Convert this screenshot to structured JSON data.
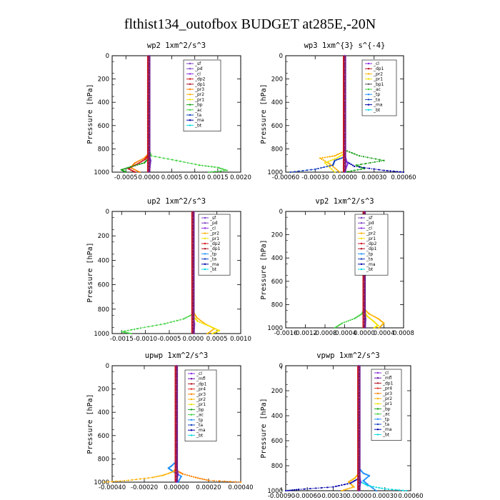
{
  "figure": {
    "title": "flthist134_outofbox  BUDGET at285E,-20N"
  },
  "colors": {
    "_sf": "#7b3fc4",
    "_pd": "#7b3fc4",
    "_cl": "#8a2be2",
    "_dp2": "#d0151d",
    "_dp1": "#b01020",
    "_pr4": "#e0301e",
    "_pr3": "#ff8000",
    "_pr2": "#ffb000",
    "_pr1": "#f2e200",
    "_bp": "#15a015",
    "_ac": "#40d040",
    "_tp": "#1e90ff",
    "_ta": "#1040c0",
    "_ma": "#0000aa",
    "_bt": "#00d8e0",
    "_mfl": "#6a0dad"
  },
  "chart_data": [
    {
      "type": "line",
      "title": "wp2   1xm^2/s^3",
      "ylabel": "Pressure [hPa]",
      "ylim": [
        1000,
        0
      ],
      "xlim": [
        -0.0008,
        0.002
      ],
      "xticks": [
        -0.0005,
        0.0,
        0.0005,
        0.001,
        0.0015,
        0.002
      ],
      "xticklabels": [
        "-0.0005",
        "0.0000",
        "0.0005",
        "0.0010",
        "0.0015",
        "0.0020"
      ],
      "yticks": [
        0,
        200,
        400,
        600,
        800,
        1000
      ],
      "legend": [
        "_sf",
        "_pd",
        "_cl",
        "_dp2",
        "_dp1",
        "_pr3",
        "_pr2",
        "_pr1",
        "_bp",
        "_ac",
        "_ta",
        "_ma",
        "_bt"
      ],
      "legend_position": "top-right",
      "series": [
        {
          "key": "_ac",
          "x": [
            0,
            0,
            5e-05,
            0.0006,
            0.0011,
            0.0015,
            0.0017,
            0.0013
          ],
          "y": [
            0,
            800,
            860,
            900,
            940,
            960,
            985,
            1000
          ]
        },
        {
          "key": "_pr3",
          "x": [
            0,
            0,
            -0.0001,
            -0.0003,
            -0.0004,
            -0.0002
          ],
          "y": [
            0,
            840,
            880,
            920,
            960,
            1000
          ]
        },
        {
          "key": "_dp2",
          "x": [
            0,
            0,
            -8e-05,
            -0.00025,
            -0.00045,
            -0.0003
          ],
          "y": [
            0,
            850,
            890,
            930,
            970,
            1000
          ]
        },
        {
          "key": "_bp",
          "x": [
            0,
            0,
            -0.0001,
            -0.0004,
            -0.0006,
            -0.0005
          ],
          "y": [
            0,
            880,
            920,
            955,
            980,
            1000
          ]
        },
        {
          "key": "_sf",
          "x": [
            0,
            0,
            4e-05,
            2e-05,
            0
          ],
          "y": [
            0,
            840,
            900,
            960,
            1000
          ]
        }
      ]
    },
    {
      "type": "line",
      "title": "wp3   1xm^{3} s^{-4}",
      "ylabel": "Pressure [hPa]",
      "ylim": [
        1000,
        0
      ],
      "xlim": [
        -0.0006,
        0.0006
      ],
      "xticks": [
        -0.0006,
        -0.0003,
        0.0,
        0.0003,
        0.0006
      ],
      "xticklabels": [
        "-0.00060",
        "-0.00030",
        "0.00000",
        "0.00030",
        "0.00060"
      ],
      "yticks": [
        0,
        200,
        400,
        600,
        800,
        1000
      ],
      "legend": [
        "_cl",
        "_dp1",
        "_pr2",
        "_pr1",
        "_bp1",
        "_ac",
        "_tp",
        "_ta",
        "_ma",
        "_bt"
      ],
      "legend_position": "top-right",
      "series": [
        {
          "key": "_bp",
          "x": [
            0,
            0,
            0.00015,
            0.0004,
            0.00012,
            0.0002,
            0
          ],
          "y": [
            0,
            810,
            860,
            900,
            940,
            970,
            1000
          ]
        },
        {
          "key": "_pr2",
          "x": [
            0,
            0,
            -0.0001,
            -0.00025,
            -0.00015,
            -5e-05
          ],
          "y": [
            0,
            820,
            860,
            880,
            930,
            1000
          ]
        },
        {
          "key": "_pr1",
          "x": [
            0,
            0,
            -8e-05,
            -0.0002,
            -0.0001
          ],
          "y": [
            0,
            840,
            880,
            920,
            1000
          ]
        },
        {
          "key": "_ta",
          "x": [
            0,
            0,
            -0.0001,
            -0.00012,
            -0.0003,
            -0.00055
          ],
          "y": [
            0,
            870,
            900,
            940,
            975,
            1000
          ]
        },
        {
          "key": "_ma",
          "x": [
            0,
            0,
            0.0001,
            0.0004,
            0.0006
          ],
          "y": [
            0,
            900,
            950,
            985,
            1000
          ]
        },
        {
          "key": "_cl",
          "x": [
            0,
            0,
            3e-05,
            0
          ],
          "y": [
            0,
            850,
            930,
            1000
          ]
        }
      ]
    },
    {
      "type": "line",
      "title": "up2   1xm^2/s^3",
      "ylabel": "Pressure [hPa]",
      "ylim": [
        1000,
        0
      ],
      "xlim": [
        -0.0017,
        0.001
      ],
      "xticks": [
        -0.0015,
        -0.001,
        -0.0005,
        0.0,
        0.0005,
        0.001
      ],
      "xticklabels": [
        "-0.0015",
        "-0.0010",
        "-0.0005",
        "0.0000",
        "0.0005",
        "0.0010"
      ],
      "yticks": [
        0,
        200,
        400,
        600,
        800,
        1000
      ],
      "legend": [
        "_sf",
        "_pd",
        "_cl",
        "_pr2",
        "_pr1",
        "_dp2",
        "_dp1",
        "_tp",
        "_ta",
        "_ma",
        "_bt"
      ],
      "legend_position": "top-right",
      "series": [
        {
          "key": "_ac",
          "x": [
            0,
            0,
            -0.0002,
            -0.0006,
            -0.0011,
            -0.0015,
            -0.0013
          ],
          "y": [
            0,
            840,
            880,
            920,
            955,
            985,
            1000
          ]
        },
        {
          "key": "_pr2",
          "x": [
            0,
            0,
            8e-05,
            0.00025,
            0.00045,
            0.0003
          ],
          "y": [
            0,
            820,
            870,
            920,
            960,
            1000
          ]
        },
        {
          "key": "_pr1",
          "x": [
            0,
            0,
            0.0001,
            0.00035,
            0.00055,
            0.0004
          ],
          "y": [
            0,
            860,
            900,
            940,
            975,
            1000
          ]
        },
        {
          "key": "_sf",
          "x": [
            0,
            0,
            3e-05,
            2e-05
          ],
          "y": [
            0,
            840,
            920,
            1000
          ]
        }
      ]
    },
    {
      "type": "line",
      "title": "vp2   1xm^2/s^3",
      "ylabel": "Pressure [hPa]",
      "ylim": [
        1000,
        0
      ],
      "xlim": [
        -0.0016,
        0.0008
      ],
      "xticks": [
        -0.0016,
        -0.0012,
        -0.0008,
        -0.0004,
        0.0,
        0.0004,
        0.0008
      ],
      "xticklabels": [
        "-0.0016",
        "-0.0012",
        "-0.0008",
        "-0.0004",
        "0.0000",
        "0.0004",
        "0.0008"
      ],
      "yticks": [
        0,
        200,
        400,
        600,
        800,
        1000
      ],
      "legend": [
        "_sf",
        "_pd",
        "_cl",
        "_pr2",
        "_pr1",
        "_dp2",
        "_dp1",
        "_tp",
        "_ta",
        "_ma",
        "_bt"
      ],
      "legend_position": "top-right",
      "series": [
        {
          "key": "_ac",
          "x": [
            0,
            0,
            -5e-05,
            -0.0002,
            -0.00045,
            -0.0006
          ],
          "y": [
            0,
            840,
            880,
            920,
            960,
            1000
          ]
        },
        {
          "key": "_pr2",
          "x": [
            0,
            0,
            0.0001,
            0.00028,
            0.0004,
            0.0003
          ],
          "y": [
            0,
            840,
            880,
            920,
            960,
            1000
          ]
        },
        {
          "key": "_pr1",
          "x": [
            0,
            0,
            6e-05,
            0.00018,
            0.00028,
            0.0002
          ],
          "y": [
            0,
            860,
            900,
            940,
            980,
            1000
          ]
        },
        {
          "key": "_sf",
          "x": [
            0,
            0,
            3e-05,
            2e-05
          ],
          "y": [
            0,
            840,
            920,
            1000
          ]
        }
      ]
    },
    {
      "type": "line",
      "title": "upwp   1xm^2/s^3",
      "ylabel": "Pressure [hPa]",
      "ylim": [
        1000,
        0
      ],
      "xlim": [
        -0.0004,
        0.0004
      ],
      "xticks": [
        -0.0004,
        -0.0002,
        0.0,
        0.0002,
        0.0004
      ],
      "xticklabels": [
        "-0.00040",
        "-0.00020",
        "0.00000",
        "0.00020",
        "0.00040"
      ],
      "yticks": [
        0,
        200,
        400,
        600,
        800,
        1000
      ],
      "legend": [
        "_cl",
        "_mfl",
        "_dp1",
        "_pr4",
        "_pr3",
        "_pr2",
        "_pr1",
        "_bp",
        "_ac",
        "_tp",
        "_ta",
        "_ma",
        "_bt"
      ],
      "legend_position": "top-right",
      "series": [
        {
          "key": "_tp",
          "x": [
            0,
            0,
            -3e-05,
            -5e-05,
            -2e-05,
            3e-05,
            1e-05
          ],
          "y": [
            0,
            820,
            860,
            880,
            910,
            950,
            1000
          ]
        },
        {
          "key": "_pr2",
          "x": [
            0,
            0,
            -2e-05,
            -8e-05,
            -0.00015,
            -0.0003,
            -0.00045
          ],
          "y": [
            0,
            880,
            910,
            940,
            960,
            985,
            1000
          ]
        },
        {
          "key": "_pr3",
          "x": [
            0,
            0,
            4e-05,
            0.00012,
            0.0002,
            0.0004
          ],
          "y": [
            0,
            900,
            930,
            960,
            985,
            1000
          ]
        },
        {
          "key": "_cl",
          "x": [
            0,
            0,
            1e-05,
            0
          ],
          "y": [
            0,
            850,
            930,
            1000
          ]
        }
      ]
    },
    {
      "type": "line",
      "title": "vpwp   1xm^2/s^3",
      "ylabel": "Pressure [hPa]",
      "ylim": [
        1000,
        0
      ],
      "xlim": [
        -0.00085,
        0.0006
      ],
      "xticks": [
        -0.0009,
        -0.0006,
        -0.0003,
        0.0,
        0.0003,
        0.0006
      ],
      "xticklabels": [
        "-0.00090",
        "-0.00060",
        "-0.00030",
        "0.00000",
        "0.00030",
        "0.00060"
      ],
      "yticks": [
        0,
        200,
        400,
        600,
        800,
        1000
      ],
      "legend": [
        "_cl",
        "_mfl",
        "_dp1",
        "_pr4",
        "_pr3",
        "_pr2",
        "_pr1",
        "_bp",
        "_ac",
        "_tp",
        "_ta",
        "_ma",
        "_bt"
      ],
      "legend_position": "top-right",
      "series": [
        {
          "key": "_tp",
          "x": [
            0,
            0,
            5e-05,
            0.00012,
            5e-05,
            0.0001,
            0.0002
          ],
          "y": [
            0,
            820,
            860,
            880,
            920,
            950,
            1000
          ]
        },
        {
          "key": "_pr2",
          "x": [
            0,
            0,
            -5e-05,
            -0.00012,
            -6e-05,
            -0.0002
          ],
          "y": [
            0,
            860,
            900,
            930,
            970,
            1000
          ]
        },
        {
          "key": "_ma",
          "x": [
            0,
            0,
            -0.0001,
            -0.0003,
            -0.0007,
            -0.00085
          ],
          "y": [
            0,
            900,
            940,
            970,
            990,
            1000
          ]
        },
        {
          "key": "_bt",
          "x": [
            0,
            0,
            0.0001,
            0.0003,
            0.00055
          ],
          "y": [
            0,
            920,
            960,
            985,
            1000
          ]
        },
        {
          "key": "_cl",
          "x": [
            0,
            0,
            2e-05,
            0
          ],
          "y": [
            0,
            850,
            930,
            1000
          ]
        }
      ]
    }
  ]
}
